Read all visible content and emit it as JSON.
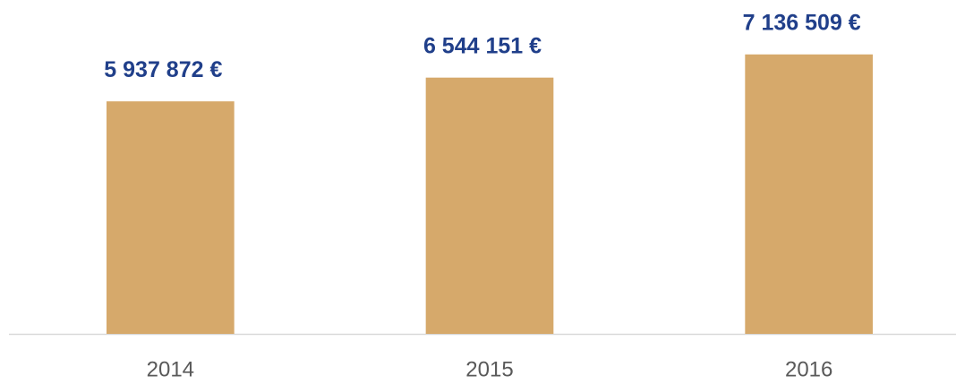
{
  "chart_data": {
    "type": "bar",
    "categories": [
      "2014",
      "2015",
      "2016"
    ],
    "values": [
      5937872,
      6544151,
      7136509
    ],
    "value_labels": [
      "5 937 872 €",
      "6 544 151 €",
      "7 136 509 €"
    ],
    "color": "#d6a96b",
    "label_color": "#203f8a",
    "ylim": [
      0,
      8000000
    ]
  }
}
